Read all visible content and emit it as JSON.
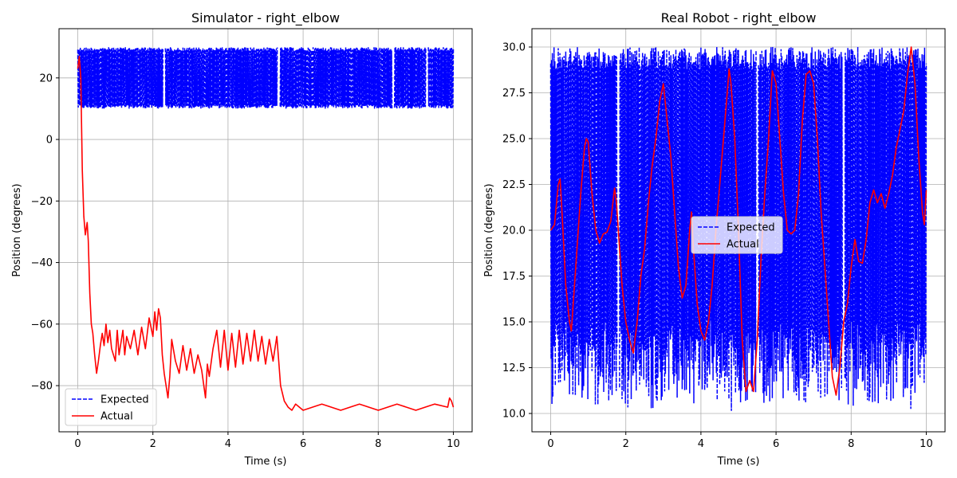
{
  "chart_data": [
    {
      "type": "line",
      "title": "Simulator - right_elbow",
      "xlabel": "Time (s)",
      "ylabel": "Position (degrees)",
      "xlim": [
        -0.5,
        10.5
      ],
      "ylim": [
        -95,
        36
      ],
      "xticks": [
        0,
        2,
        4,
        6,
        8,
        10
      ],
      "xtick_labels": [
        "0",
        "2",
        "4",
        "6",
        "8",
        "10"
      ],
      "yticks": [
        -80,
        -60,
        -40,
        -20,
        0,
        20
      ],
      "ytick_labels": [
        "−80",
        "−60",
        "−40",
        "−20",
        "0",
        "20"
      ],
      "grid": true,
      "legend_position": "bottom-left",
      "legend": [
        "Expected",
        "Actual"
      ],
      "series": [
        {
          "name": "Expected",
          "color": "#0000ff",
          "style": "dashed",
          "description_range": [
            10,
            30
          ],
          "x_range": [
            0,
            10
          ],
          "gaps_at": [
            2.3,
            5.35,
            8.4,
            9.3
          ]
        },
        {
          "name": "Actual",
          "color": "#ff0000",
          "style": "solid",
          "points": [
            [
              0,
              23
            ],
            [
              0.04,
              27
            ],
            [
              0.08,
              20
            ],
            [
              0.12,
              -10
            ],
            [
              0.16,
              -25
            ],
            [
              0.2,
              -31
            ],
            [
              0.25,
              -27
            ],
            [
              0.28,
              -33
            ],
            [
              0.32,
              -50
            ],
            [
              0.36,
              -60
            ],
            [
              0.4,
              -63
            ],
            [
              0.45,
              -70
            ],
            [
              0.5,
              -76
            ],
            [
              0.55,
              -72
            ],
            [
              0.6,
              -67
            ],
            [
              0.65,
              -63
            ],
            [
              0.7,
              -67
            ],
            [
              0.75,
              -60
            ],
            [
              0.8,
              -66
            ],
            [
              0.85,
              -62
            ],
            [
              0.9,
              -68
            ],
            [
              1.0,
              -72
            ],
            [
              1.05,
              -62
            ],
            [
              1.1,
              -70
            ],
            [
              1.2,
              -62
            ],
            [
              1.25,
              -70
            ],
            [
              1.3,
              -64
            ],
            [
              1.4,
              -68
            ],
            [
              1.5,
              -62
            ],
            [
              1.6,
              -70
            ],
            [
              1.7,
              -61
            ],
            [
              1.8,
              -68
            ],
            [
              1.9,
              -58
            ],
            [
              2.0,
              -64
            ],
            [
              2.05,
              -56
            ],
            [
              2.1,
              -62
            ],
            [
              2.15,
              -55
            ],
            [
              2.2,
              -58
            ],
            [
              2.25,
              -70
            ],
            [
              2.3,
              -76
            ],
            [
              2.4,
              -84
            ],
            [
              2.45,
              -77
            ],
            [
              2.5,
              -65
            ],
            [
              2.6,
              -72
            ],
            [
              2.7,
              -76
            ],
            [
              2.8,
              -67
            ],
            [
              2.9,
              -75
            ],
            [
              3.0,
              -68
            ],
            [
              3.1,
              -76
            ],
            [
              3.2,
              -70
            ],
            [
              3.3,
              -75
            ],
            [
              3.4,
              -84
            ],
            [
              3.45,
              -73
            ],
            [
              3.5,
              -77
            ],
            [
              3.6,
              -68
            ],
            [
              3.7,
              -62
            ],
            [
              3.8,
              -74
            ],
            [
              3.9,
              -62
            ],
            [
              4.0,
              -75
            ],
            [
              4.1,
              -63
            ],
            [
              4.2,
              -74
            ],
            [
              4.3,
              -62
            ],
            [
              4.4,
              -73
            ],
            [
              4.5,
              -63
            ],
            [
              4.6,
              -72
            ],
            [
              4.7,
              -62
            ],
            [
              4.8,
              -72
            ],
            [
              4.9,
              -64
            ],
            [
              5.0,
              -73
            ],
            [
              5.1,
              -65
            ],
            [
              5.2,
              -72
            ],
            [
              5.3,
              -64
            ],
            [
              5.35,
              -72
            ],
            [
              5.4,
              -80
            ],
            [
              5.5,
              -85
            ],
            [
              5.6,
              -87
            ],
            [
              5.7,
              -88
            ],
            [
              5.8,
              -86
            ],
            [
              6.0,
              -88
            ],
            [
              6.5,
              -86
            ],
            [
              7.0,
              -88
            ],
            [
              7.5,
              -86
            ],
            [
              8.0,
              -88
            ],
            [
              8.5,
              -86
            ],
            [
              9.0,
              -88
            ],
            [
              9.5,
              -86
            ],
            [
              9.85,
              -87
            ],
            [
              9.9,
              -84
            ],
            [
              9.95,
              -85
            ],
            [
              10.0,
              -87
            ]
          ]
        }
      ]
    },
    {
      "type": "line",
      "title": "Real Robot - right_elbow",
      "xlabel": "Time (s)",
      "ylabel": "Position (degrees)",
      "xlim": [
        -0.5,
        10.5
      ],
      "ylim": [
        9.0,
        31.0
      ],
      "xticks": [
        0,
        2,
        4,
        6,
        8,
        10
      ],
      "xtick_labels": [
        "0",
        "2",
        "4",
        "6",
        "8",
        "10"
      ],
      "yticks": [
        10.0,
        12.5,
        15.0,
        17.5,
        20.0,
        22.5,
        25.0,
        27.5,
        30.0
      ],
      "ytick_labels": [
        "10.0",
        "12.5",
        "15.0",
        "17.5",
        "20.0",
        "22.5",
        "25.0",
        "27.5",
        "30.0"
      ],
      "grid": true,
      "legend_position": "center",
      "legend": [
        "Expected",
        "Actual"
      ],
      "series": [
        {
          "name": "Expected",
          "color": "#0000ff",
          "style": "dashed",
          "description_range": [
            10,
            30
          ],
          "x_range": [
            0,
            10
          ],
          "gaps_at": [
            1.8,
            5.5,
            7.8
          ]
        },
        {
          "name": "Actual",
          "color": "#ff0000",
          "style": "solid",
          "points": [
            [
              0,
              20
            ],
            [
              0.1,
              20.3
            ],
            [
              0.2,
              22.5
            ],
            [
              0.25,
              22.8
            ],
            [
              0.3,
              21
            ],
            [
              0.4,
              17
            ],
            [
              0.5,
              15
            ],
            [
              0.55,
              14.5
            ],
            [
              0.6,
              16
            ],
            [
              0.7,
              19
            ],
            [
              0.8,
              22
            ],
            [
              0.9,
              24.5
            ],
            [
              0.95,
              25
            ],
            [
              1.0,
              24.8
            ],
            [
              1.1,
              22
            ],
            [
              1.2,
              20
            ],
            [
              1.3,
              19.3
            ],
            [
              1.4,
              19.8
            ],
            [
              1.5,
              19.9
            ],
            [
              1.6,
              20.5
            ],
            [
              1.7,
              22.3
            ],
            [
              1.75,
              21.5
            ],
            [
              1.8,
              20
            ],
            [
              1.9,
              17
            ],
            [
              2.0,
              15
            ],
            [
              2.1,
              14
            ],
            [
              2.2,
              13.3
            ],
            [
              2.3,
              15
            ],
            [
              2.4,
              17.5
            ],
            [
              2.5,
              19
            ],
            [
              2.6,
              21.5
            ],
            [
              2.7,
              23.5
            ],
            [
              2.8,
              25
            ],
            [
              2.9,
              27
            ],
            [
              3.0,
              28
            ],
            [
              3.1,
              26
            ],
            [
              3.2,
              24
            ],
            [
              3.3,
              21
            ],
            [
              3.4,
              18
            ],
            [
              3.5,
              16.3
            ],
            [
              3.6,
              17
            ],
            [
              3.7,
              20
            ],
            [
              3.75,
              21
            ],
            [
              3.8,
              19
            ],
            [
              3.9,
              16
            ],
            [
              4.0,
              14.5
            ],
            [
              4.1,
              14
            ],
            [
              4.2,
              15
            ],
            [
              4.3,
              17
            ],
            [
              4.4,
              20
            ],
            [
              4.5,
              22.5
            ],
            [
              4.6,
              25
            ],
            [
              4.7,
              27.5
            ],
            [
              4.75,
              28.8
            ],
            [
              4.8,
              28
            ],
            [
              4.9,
              25
            ],
            [
              5.0,
              20
            ],
            [
              5.1,
              14
            ],
            [
              5.2,
              11.2
            ],
            [
              5.3,
              11.8
            ],
            [
              5.4,
              11.2
            ],
            [
              5.5,
              14
            ],
            [
              5.6,
              18.5
            ],
            [
              5.7,
              22
            ],
            [
              5.8,
              25
            ],
            [
              5.9,
              28.7
            ],
            [
              6.0,
              28
            ],
            [
              6.1,
              25
            ],
            [
              6.2,
              22
            ],
            [
              6.3,
              20
            ],
            [
              6.4,
              19.8
            ],
            [
              6.5,
              20
            ],
            [
              6.6,
              22
            ],
            [
              6.7,
              26
            ],
            [
              6.8,
              28.5
            ],
            [
              6.9,
              28.7
            ],
            [
              7.0,
              28
            ],
            [
              7.1,
              25
            ],
            [
              7.2,
              21
            ],
            [
              7.3,
              18
            ],
            [
              7.4,
              15
            ],
            [
              7.5,
              12
            ],
            [
              7.6,
              11
            ],
            [
              7.7,
              12.5
            ],
            [
              7.8,
              15
            ],
            [
              7.9,
              16
            ],
            [
              8.0,
              18
            ],
            [
              8.1,
              19.5
            ],
            [
              8.2,
              18.3
            ],
            [
              8.3,
              18.2
            ],
            [
              8.4,
              19.5
            ],
            [
              8.5,
              21.5
            ],
            [
              8.6,
              22.2
            ],
            [
              8.7,
              21.5
            ],
            [
              8.8,
              22
            ],
            [
              8.9,
              21.2
            ],
            [
              9.0,
              22
            ],
            [
              9.1,
              23
            ],
            [
              9.2,
              24.5
            ],
            [
              9.3,
              25.5
            ],
            [
              9.4,
              26.5
            ],
            [
              9.5,
              28.5
            ],
            [
              9.6,
              30
            ],
            [
              9.7,
              28
            ],
            [
              9.8,
              24
            ],
            [
              9.9,
              21
            ],
            [
              9.95,
              20.3
            ],
            [
              10.0,
              22.2
            ]
          ]
        }
      ]
    }
  ]
}
